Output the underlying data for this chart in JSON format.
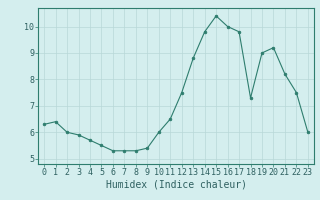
{
  "x": [
    0,
    1,
    2,
    3,
    4,
    5,
    6,
    7,
    8,
    9,
    10,
    11,
    12,
    13,
    14,
    15,
    16,
    17,
    18,
    19,
    20,
    21,
    22,
    23
  ],
  "y": [
    6.3,
    6.4,
    6.0,
    5.9,
    5.7,
    5.5,
    5.3,
    5.3,
    5.3,
    5.4,
    6.0,
    6.5,
    7.5,
    8.8,
    9.8,
    10.4,
    10.0,
    9.8,
    7.3,
    9.0,
    9.2,
    8.2,
    7.5,
    6.0
  ],
  "xlabel": "Humidex (Indice chaleur)",
  "ylim": [
    4.8,
    10.7
  ],
  "xlim": [
    -0.5,
    23.5
  ],
  "xticks": [
    0,
    1,
    2,
    3,
    4,
    5,
    6,
    7,
    8,
    9,
    10,
    11,
    12,
    13,
    14,
    15,
    16,
    17,
    18,
    19,
    20,
    21,
    22,
    23
  ],
  "yticks": [
    5,
    6,
    7,
    8,
    9,
    10
  ],
  "line_color": "#2E7D6E",
  "marker_color": "#2E7D6E",
  "bg_color": "#D4EEEE",
  "grid_color": "#B8D8D8",
  "axis_label_fontsize": 7,
  "tick_fontsize": 6,
  "xlabel_fontsize": 7
}
